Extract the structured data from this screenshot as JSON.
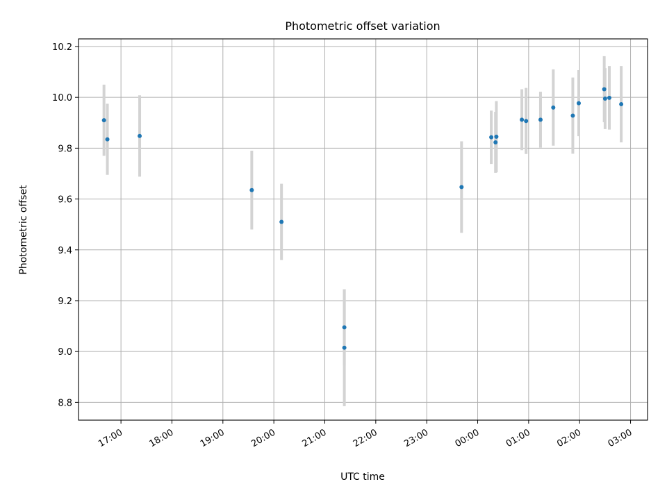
{
  "chart_data": {
    "type": "scatter",
    "title": "Photometric offset variation",
    "xlabel": "UTC time",
    "ylabel": "Photometric offset",
    "x_axis_kind": "time",
    "x_ticks": [
      "17:00",
      "18:00",
      "19:00",
      "20:00",
      "21:00",
      "22:00",
      "23:00",
      "00:00",
      "01:00",
      "02:00",
      "03:00"
    ],
    "y_ticks": [
      "8.8",
      "9.0",
      "9.2",
      "9.4",
      "9.6",
      "9.8",
      "10.0",
      "10.2"
    ],
    "xlim": [
      "16:10",
      "03:20"
    ],
    "ylim": [
      8.73,
      10.23
    ],
    "grid": true,
    "colors": {
      "point": "#1f77b4",
      "errorbar": "#d3d3d3",
      "grid": "#b0b0b0"
    },
    "points": [
      {
        "t": "16:40",
        "y": 9.91,
        "err": 0.14
      },
      {
        "t": "16:44",
        "y": 9.835,
        "err": 0.14
      },
      {
        "t": "17:22",
        "y": 9.848,
        "err": 0.16
      },
      {
        "t": "19:34",
        "y": 9.635,
        "err": 0.155
      },
      {
        "t": "20:09",
        "y": 9.51,
        "err": 0.15
      },
      {
        "t": "21:23",
        "y": 9.095,
        "err": 0.15
      },
      {
        "t": "21:23",
        "y": 9.015,
        "err": 0.23
      },
      {
        "t": "23:41",
        "y": 9.647,
        "err": 0.18
      },
      {
        "t": "00:16",
        "y": 9.843,
        "err": 0.105
      },
      {
        "t": "00:22",
        "y": 9.845,
        "err": 0.14
      },
      {
        "t": "00:21",
        "y": 9.823,
        "err": 0.12
      },
      {
        "t": "00:52",
        "y": 9.912,
        "err": 0.12
      },
      {
        "t": "00:57",
        "y": 9.907,
        "err": 0.13
      },
      {
        "t": "01:14",
        "y": 9.912,
        "err": 0.11
      },
      {
        "t": "01:29",
        "y": 9.96,
        "err": 0.15
      },
      {
        "t": "01:52",
        "y": 9.928,
        "err": 0.15
      },
      {
        "t": "01:59",
        "y": 9.977,
        "err": 0.13
      },
      {
        "t": "02:29",
        "y": 10.032,
        "err": 0.13
      },
      {
        "t": "02:30",
        "y": 9.995,
        "err": 0.12
      },
      {
        "t": "02:35",
        "y": 9.998,
        "err": 0.125
      },
      {
        "t": "02:49",
        "y": 9.973,
        "err": 0.15
      }
    ]
  }
}
